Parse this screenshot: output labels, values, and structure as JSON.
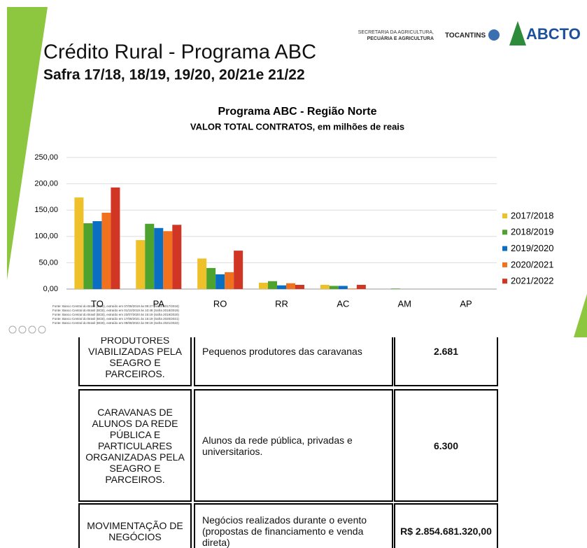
{
  "header": {
    "title": "Crédito Rural - Programa ABC",
    "subtitle": "Safra 17/18, 18/19, 19/20, 20/21e 21/22",
    "logos": {
      "secretaria": [
        "SECRETARIA DA AGRICULTURA,",
        "PECUÁRIA E AGRICULTURA"
      ],
      "state": "TOCANTINS",
      "brand": "ABCTO"
    }
  },
  "chart_data": {
    "type": "bar",
    "title": "Programa ABC - Região Norte",
    "subtitle": "VALOR TOTAL  CONTRATOS, em milhões de reais",
    "categories": [
      "TO",
      "PA",
      "RO",
      "RR",
      "AC",
      "AM",
      "AP"
    ],
    "series": [
      {
        "name": "2017/2018",
        "color": "#eec12a",
        "values": [
          174,
          93,
          58,
          12,
          8,
          0,
          0
        ]
      },
      {
        "name": "2018/2019",
        "color": "#4ea32e",
        "values": [
          125,
          124,
          40,
          15,
          6,
          1,
          0
        ]
      },
      {
        "name": "2019/2020",
        "color": "#0a6fc2",
        "values": [
          129,
          116,
          28,
          7,
          6,
          0,
          0
        ]
      },
      {
        "name": "2020/2021",
        "color": "#f0711e",
        "values": [
          145,
          110,
          32,
          11,
          1,
          0,
          0
        ]
      },
      {
        "name": "2021/2022",
        "color": "#d13523",
        "values": [
          193,
          122,
          73,
          8,
          8,
          0,
          0
        ]
      }
    ],
    "ylim": [
      0,
      250
    ],
    "yticks": [
      {
        "value": 0,
        "label": "0,00"
      },
      {
        "value": 50,
        "label": "50,00"
      },
      {
        "value": 100,
        "label": "100,00"
      },
      {
        "value": 150,
        "label": "150,00"
      },
      {
        "value": 200,
        "label": "200,00"
      },
      {
        "value": 250,
        "label": "250,00"
      }
    ],
    "grid": true,
    "legend": "right",
    "notes": [
      "Fonte: Banco Central do Brasil (BCB), extraído em 07/08/2018 às 09:27 (Safra 2017/2018)",
      "Fonte: Banco Central do Brasil (BCB), extraído em 01/10/2019 às 10:48 (Safra 2018/2019)",
      "Fonte: Banco Central do Brasil (BCB), extraído em 23/07/2020 às 15:19 (Safra 2019/2020)",
      "Fonte: Banco Central do Brasil (BCB), extraído em 17/08/2021 às 15:19 (Safra 2020/2021)",
      "Fonte: Banco Central do Brasil (BCB), extraído em 09/08/2022 às 09:19 (Safra 2021/2022)"
    ]
  },
  "table": {
    "rows": [
      [
        "PRODUTORES VIABILIZADAS PELA SEAGRO E PARCEIROS.",
        "Pequenos produtores das caravanas",
        "2.681"
      ],
      [
        "CARAVANAS DE ALUNOS DA REDE PÚBLICA E PARTICULARES ORGANIZADAS PELA SEAGRO E PARCEIROS.",
        "Alunos da rede pública, privadas e universitarios.",
        "6.300"
      ],
      [
        "MOVIMENTAÇÃO DE NEGÓCIOS",
        "Negócios realizados durante o evento (propostas de financiamento e venda direta)",
        "R$ 2.854.681.320,00"
      ]
    ]
  }
}
